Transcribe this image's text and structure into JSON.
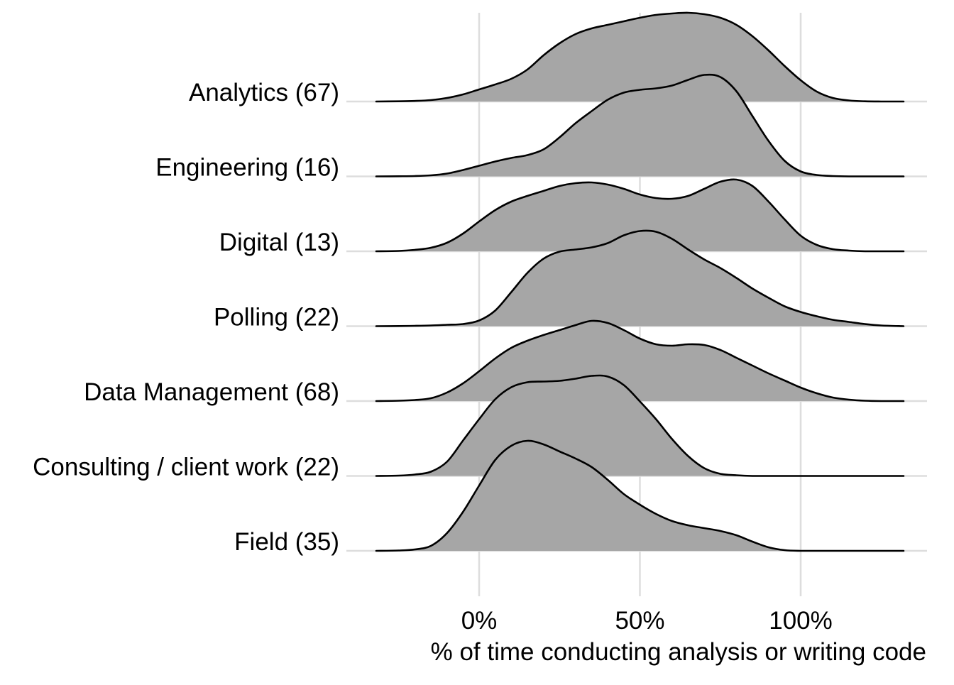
{
  "chart_data": {
    "type": "area",
    "subtype": "ridgeline-density",
    "title": "",
    "xlabel": "% of time conducting analysis or writing code",
    "ylabel": "",
    "xlim": [
      -32,
      132
    ],
    "x_ticks": [
      {
        "value": 0,
        "label": "0%"
      },
      {
        "value": 50,
        "label": "50%"
      },
      {
        "value": 100,
        "label": "100%"
      }
    ],
    "grid": true,
    "fill_color": "#a6a6a6",
    "line_color": "#000000",
    "grid_color": "#dddddd",
    "series": [
      {
        "name": "Analytics (67)",
        "x": [
          -32,
          -25,
          -20,
          -15,
          -10,
          -5,
          0,
          5,
          10,
          15,
          20,
          25,
          30,
          35,
          40,
          45,
          50,
          55,
          60,
          65,
          70,
          75,
          80,
          85,
          90,
          95,
          100,
          105,
          110,
          115,
          120,
          125,
          132
        ],
        "y": [
          0,
          0.3,
          0.8,
          2,
          5,
          10,
          17,
          24,
          32,
          45,
          65,
          82,
          95,
          103,
          108,
          113,
          118,
          122,
          124,
          125,
          123,
          118,
          108,
          92,
          72,
          50,
          30,
          14,
          5,
          1.5,
          0.3,
          0,
          0
        ]
      },
      {
        "name": "Engineering (16)",
        "x": [
          -32,
          -25,
          -20,
          -15,
          -10,
          -5,
          0,
          5,
          10,
          15,
          20,
          25,
          30,
          35,
          40,
          45,
          50,
          55,
          60,
          65,
          70,
          75,
          80,
          85,
          90,
          95,
          100,
          105,
          110,
          115,
          120,
          125,
          132
        ],
        "y": [
          0,
          0.2,
          0.5,
          1.5,
          4,
          9,
          15,
          21,
          26,
          30,
          38,
          55,
          75,
          92,
          108,
          118,
          122,
          124,
          128,
          136,
          143,
          140,
          120,
          85,
          50,
          22,
          7,
          2,
          0.5,
          0,
          0,
          0,
          0
        ]
      },
      {
        "name": "Digital (13)",
        "x": [
          -32,
          -25,
          -20,
          -15,
          -10,
          -5,
          0,
          5,
          10,
          15,
          20,
          25,
          30,
          35,
          40,
          45,
          50,
          55,
          60,
          65,
          70,
          75,
          80,
          85,
          90,
          95,
          100,
          105,
          110,
          115,
          120,
          125,
          132
        ],
        "y": [
          0,
          0.5,
          2,
          5,
          12,
          25,
          42,
          58,
          70,
          78,
          85,
          92,
          96,
          97,
          94,
          88,
          80,
          75,
          74,
          78,
          88,
          98,
          101,
          92,
          70,
          45,
          22,
          9,
          3,
          1,
          0,
          0,
          0
        ]
      },
      {
        "name": "Polling (22)",
        "x": [
          -32,
          -25,
          -20,
          -15,
          -10,
          -5,
          0,
          5,
          10,
          15,
          20,
          25,
          30,
          35,
          40,
          45,
          50,
          55,
          60,
          65,
          70,
          75,
          80,
          85,
          90,
          95,
          100,
          105,
          110,
          115,
          120,
          125,
          132
        ],
        "y": [
          0,
          0.2,
          0.5,
          1,
          2,
          3,
          8,
          22,
          48,
          75,
          95,
          105,
          108,
          111,
          117,
          128,
          134,
          133,
          123,
          108,
          94,
          82,
          68,
          53,
          40,
          28,
          20,
          14,
          9,
          6,
          3,
          1,
          0
        ]
      },
      {
        "name": "Data Management (68)",
        "x": [
          -32,
          -25,
          -20,
          -15,
          -10,
          -5,
          0,
          5,
          10,
          15,
          20,
          25,
          30,
          35,
          40,
          45,
          50,
          55,
          60,
          65,
          70,
          75,
          80,
          85,
          90,
          95,
          100,
          105,
          110,
          115,
          120,
          125,
          132
        ],
        "y": [
          0,
          0.5,
          1.5,
          4,
          12,
          25,
          42,
          60,
          75,
          85,
          93,
          100,
          107,
          113,
          110,
          100,
          88,
          80,
          78,
          80,
          79,
          72,
          61,
          50,
          39,
          29,
          19,
          11,
          5,
          2,
          0.5,
          0,
          0
        ]
      },
      {
        "name": "Consulting / client work (22)",
        "x": [
          -32,
          -25,
          -20,
          -15,
          -10,
          -5,
          0,
          5,
          10,
          15,
          20,
          25,
          30,
          35,
          40,
          45,
          50,
          55,
          60,
          65,
          70,
          75,
          80,
          85,
          90,
          95,
          100,
          105,
          110,
          115,
          120,
          125,
          132
        ],
        "y": [
          0,
          0.5,
          2,
          6,
          20,
          50,
          80,
          108,
          125,
          132,
          133,
          134,
          137,
          141,
          140,
          128,
          105,
          80,
          52,
          28,
          11,
          3,
          1,
          0,
          0,
          0,
          0,
          0,
          0,
          0,
          0,
          0,
          0
        ]
      },
      {
        "name": "Field (35)",
        "x": [
          -32,
          -25,
          -20,
          -15,
          -10,
          -5,
          0,
          5,
          10,
          15,
          20,
          25,
          30,
          35,
          40,
          45,
          50,
          55,
          60,
          65,
          70,
          75,
          80,
          85,
          90,
          95,
          100,
          105,
          110,
          115,
          120,
          125,
          132
        ],
        "y": [
          0,
          0.5,
          2,
          7,
          25,
          55,
          92,
          128,
          148,
          155,
          150,
          140,
          130,
          118,
          100,
          80,
          65,
          52,
          42,
          36,
          32,
          28,
          22,
          13,
          5,
          1,
          0,
          0,
          0,
          0,
          0,
          0,
          0
        ]
      }
    ]
  }
}
